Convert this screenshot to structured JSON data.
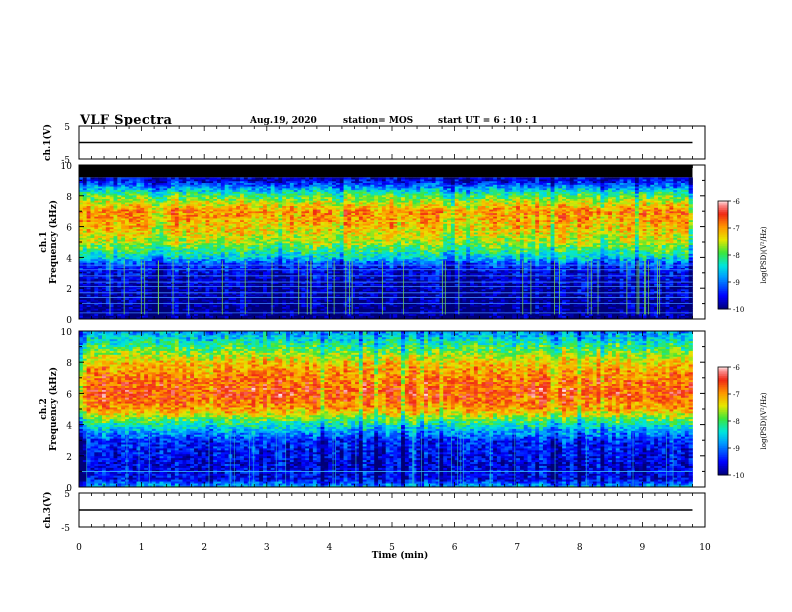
{
  "header": {
    "title": "VLF Spectra",
    "date": "Aug.19, 2020",
    "station": "station= MOS",
    "start_ut": "start  UT =   6  : 10 : 1"
  },
  "chart_data": [
    {
      "type": "line",
      "panel": "ch1_waveform",
      "ylabel": "ch.1(V)",
      "ylim": [
        -5,
        5
      ],
      "yticks": [
        "5",
        "-5"
      ],
      "xlim": [
        0,
        10
      ],
      "series": [
        {
          "x": [
            0,
            9.8
          ],
          "y": [
            0,
            0
          ]
        }
      ]
    },
    {
      "type": "heatmap",
      "panel": "ch1_spectrogram",
      "ylabel_line1": "ch.1",
      "ylabel_line2": "Frequency (kHz)",
      "ylim": [
        0,
        10
      ],
      "yticks": [
        "0",
        "2",
        "4",
        "6",
        "8",
        "10"
      ],
      "xlim": [
        0,
        10
      ],
      "data_end_min": 9.8,
      "colorbar": {
        "label": "log(PSD)(V²/Hz)",
        "range": [
          -10,
          -6
        ],
        "ticks": [
          "-6",
          "-7",
          "-8",
          "-9",
          "-10"
        ]
      },
      "spectrum_profile": [
        {
          "f": 0.0,
          "v": -10.0
        },
        {
          "f": 1.0,
          "v": -9.9
        },
        {
          "f": 2.0,
          "v": -9.8
        },
        {
          "f": 3.0,
          "v": -9.6
        },
        {
          "f": 3.6,
          "v": -9.2
        },
        {
          "f": 4.0,
          "v": -8.5
        },
        {
          "f": 5.0,
          "v": -7.6
        },
        {
          "f": 6.0,
          "v": -7.2
        },
        {
          "f": 7.0,
          "v": -6.9
        },
        {
          "f": 8.0,
          "v": -7.9
        },
        {
          "f": 8.5,
          "v": -8.7
        },
        {
          "f": 9.0,
          "v": -9.6
        }
      ],
      "cutoff_khz": 9.2
    },
    {
      "type": "heatmap",
      "panel": "ch2_spectrogram",
      "ylabel_line1": "ch.2",
      "ylabel_line2": "Frequency (kHz)",
      "ylim": [
        0,
        10
      ],
      "yticks": [
        "0",
        "2",
        "4",
        "6",
        "8",
        "10"
      ],
      "xlim": [
        0,
        10
      ],
      "data_end_min": 9.8,
      "colorbar": {
        "label": "log(PSD)(V²/Hz)",
        "range": [
          -10,
          -6
        ],
        "ticks": [
          "-6",
          "-7",
          "-8",
          "-9",
          "-10"
        ]
      },
      "spectrum_profile": [
        {
          "f": 0.0,
          "v": -8.6
        },
        {
          "f": 0.5,
          "v": -9.5
        },
        {
          "f": 1.5,
          "v": -9.6
        },
        {
          "f": 3.0,
          "v": -9.3
        },
        {
          "f": 4.0,
          "v": -8.3
        },
        {
          "f": 5.0,
          "v": -7.0
        },
        {
          "f": 6.0,
          "v": -6.6
        },
        {
          "f": 7.0,
          "v": -6.8
        },
        {
          "f": 8.0,
          "v": -7.2
        },
        {
          "f": 9.0,
          "v": -8.0
        },
        {
          "f": 10.0,
          "v": -8.8
        }
      ],
      "cutoff_khz": 10
    },
    {
      "type": "line",
      "panel": "ch3_waveform",
      "ylabel": "ch.3(V)",
      "ylim": [
        -5,
        5
      ],
      "yticks": [
        "5",
        "-5"
      ],
      "xlim": [
        0,
        10
      ],
      "series": [
        {
          "x": [
            0,
            9.8
          ],
          "y": [
            0,
            0
          ]
        }
      ]
    }
  ],
  "xaxis": {
    "label": "Time (min)",
    "ticks": [
      "0",
      "1",
      "2",
      "3",
      "4",
      "5",
      "6",
      "7",
      "8",
      "9",
      "10"
    ]
  }
}
